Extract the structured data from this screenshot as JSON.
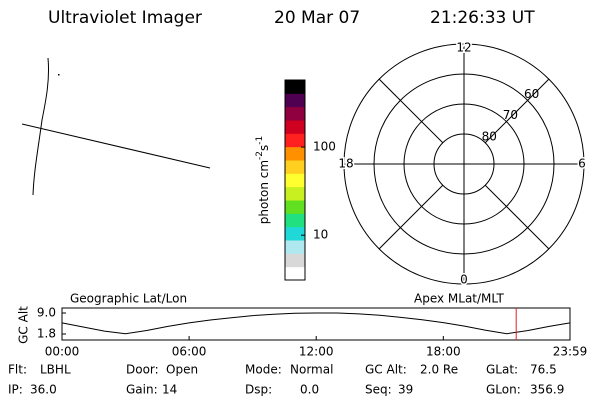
{
  "header": {
    "instrument": "Ultraviolet Imager",
    "date": "20 Mar 07",
    "time": "21:26:33 UT"
  },
  "geo_panel": {
    "title": "Geographic Lat/Lon"
  },
  "colorbar": {
    "label": [
      "photon cm",
      "-2",
      "s",
      "-1"
    ],
    "log": true,
    "ylim": [
      3.1,
      577
    ],
    "yticks": [
      10,
      100
    ],
    "colors": [
      "#ffffff",
      "#d8d8d8",
      "#b0e8f0",
      "#20d8d8",
      "#20e080",
      "#60e020",
      "#c8f020",
      "#ffff30",
      "#ffd020",
      "#ff9000",
      "#ff2020",
      "#d00020",
      "#900040",
      "#500050",
      "#000000"
    ]
  },
  "polar": {
    "title": "Apex MLat/MLT",
    "rlim": [
      90,
      50
    ],
    "lat_ticks": [
      80,
      70,
      60
    ],
    "mlt_ticks": [
      12,
      18,
      6,
      0
    ]
  },
  "altitude": {
    "ylabel": "GC Alt",
    "ylim": [
      1.8,
      9.0
    ],
    "yticks": [
      {
        "value": 9.0,
        "label": "9.0"
      },
      {
        "value": 1.8,
        "label": "1.8"
      }
    ],
    "xlim": [
      0,
      23.98
    ],
    "xticks": [
      {
        "value": 0,
        "label": "00:00"
      },
      {
        "value": 6,
        "label": "06:00"
      },
      {
        "value": 12,
        "label": "12:00"
      },
      {
        "value": 18,
        "label": "18:00"
      },
      {
        "value": 23.98,
        "label": "23:59"
      }
    ],
    "x": [
      0,
      1,
      2,
      3,
      4,
      5,
      6,
      7,
      8,
      9,
      10,
      11,
      12,
      13,
      14,
      15,
      16,
      17,
      18,
      19,
      20,
      21,
      22,
      23,
      23.98
    ],
    "values": [
      5.6,
      4.2,
      2.8,
      1.9,
      3.0,
      4.4,
      5.6,
      6.6,
      7.4,
      8.1,
      8.6,
      8.9,
      9.0,
      9.0,
      8.7,
      8.2,
      7.5,
      6.7,
      5.7,
      4.5,
      3.1,
      1.9,
      3.0,
      4.4,
      5.6
    ],
    "current_time": 21.44,
    "current_color": "#e02020"
  },
  "status": {
    "rows": [
      [
        {
          "label": "Flt:",
          "value": "LBHL"
        },
        {
          "label": "Door:",
          "value": "Open"
        },
        {
          "label": "Mode:",
          "value": "Normal"
        },
        {
          "label": "GC Alt:",
          "value": "2.0 Re"
        },
        {
          "label": "GLat:",
          "value": "76.5"
        }
      ],
      [
        {
          "label": "IP:",
          "value": "36.0"
        },
        {
          "label": "Gain:",
          "value": "14"
        },
        {
          "label": "Dsp:",
          "value": "0.0"
        },
        {
          "label": "Seq:",
          "value": "39"
        },
        {
          "label": "GLon:",
          "value": "356.9"
        }
      ]
    ]
  }
}
